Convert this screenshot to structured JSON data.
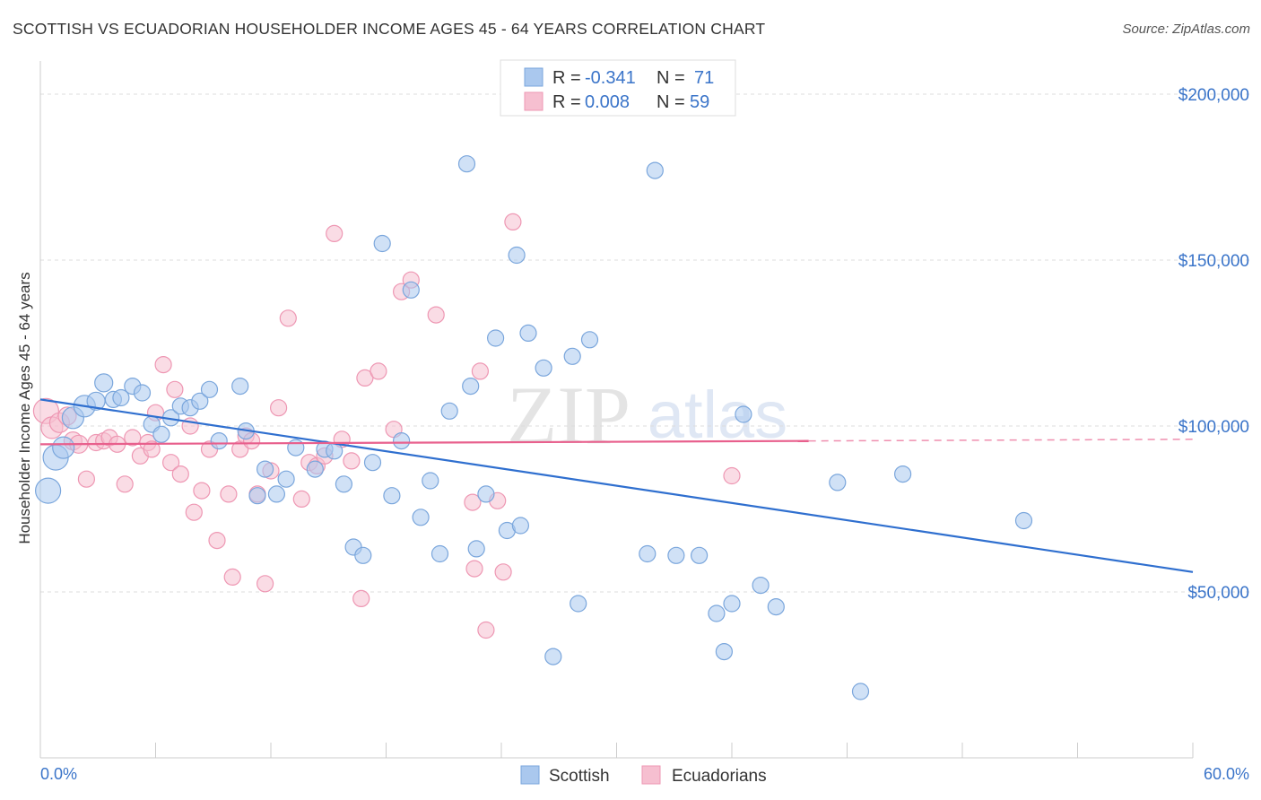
{
  "header": {
    "title": "SCOTTISH VS ECUADORIAN HOUSEHOLDER INCOME AGES 45 - 64 YEARS CORRELATION CHART",
    "source": "Source: ZipAtlas.com"
  },
  "watermark": {
    "zip": "ZIP",
    "atlas": "atlas"
  },
  "legend_top": [
    {
      "r_label": "R =",
      "r_value": "-0.341",
      "n_label": "N =",
      "n_value": "71"
    },
    {
      "r_label": "R =",
      "r_value": "0.008",
      "n_label": "N =",
      "n_value": "59"
    }
  ],
  "legend_bottom": [
    "Scottish",
    "Ecuadorians"
  ],
  "colors": {
    "scottish_fill": "#aac8ee",
    "scottish_stroke": "#7aa6dc",
    "scottish_line": "#2f6fcf",
    "ecuadorian_fill": "#f6bfd0",
    "ecuadorian_stroke": "#ee97b3",
    "ecuadorian_line": "#e8608d",
    "tick_text": "#3a74c9"
  },
  "chart_data": {
    "type": "scatter",
    "title": "SCOTTISH VS ECUADORIAN HOUSEHOLDER INCOME AGES 45 - 64 YEARS CORRELATION CHART",
    "xlabel": "",
    "ylabel": "Householder Income Ages 45 - 64 years",
    "xlim": [
      0,
      60
    ],
    "ylim": [
      0,
      210000
    ],
    "x_tick_labels": [
      "0.0%",
      "60.0%"
    ],
    "y_ticks": [
      50000,
      100000,
      150000,
      200000
    ],
    "y_tick_labels": [
      "$50,000",
      "$100,000",
      "$150,000",
      "$200,000"
    ],
    "grid": true,
    "legend_position": "top-center",
    "series": [
      {
        "name": "Scottish",
        "r": -0.341,
        "n": 71,
        "trend": {
          "x": [
            0,
            60
          ],
          "y": [
            108000,
            56000
          ]
        },
        "points": [
          [
            0.4,
            80500,
            14
          ],
          [
            0.8,
            90500,
            14
          ],
          [
            1.2,
            93500,
            12
          ],
          [
            1.7,
            102500,
            12
          ],
          [
            2.3,
            106000,
            12
          ],
          [
            2.9,
            107500,
            10
          ],
          [
            3.3,
            113000,
            10
          ],
          [
            3.8,
            108000,
            9
          ],
          [
            4.2,
            108500,
            9
          ],
          [
            4.8,
            112000,
            9
          ],
          [
            5.3,
            110000,
            9
          ],
          [
            5.8,
            100500,
            9
          ],
          [
            6.3,
            97500,
            9
          ],
          [
            6.8,
            102500,
            9
          ],
          [
            7.3,
            106000,
            9
          ],
          [
            7.8,
            105500,
            9
          ],
          [
            8.3,
            107500,
            9
          ],
          [
            8.8,
            111000,
            9
          ],
          [
            9.3,
            95500,
            9
          ],
          [
            10.4,
            112000,
            9
          ],
          [
            10.7,
            98500,
            9
          ],
          [
            11.3,
            79000,
            9
          ],
          [
            11.7,
            87000,
            9
          ],
          [
            12.3,
            79500,
            9
          ],
          [
            12.8,
            84000,
            9
          ],
          [
            13.3,
            93500,
            9
          ],
          [
            14.3,
            87000,
            9
          ],
          [
            14.8,
            93000,
            9
          ],
          [
            15.3,
            92500,
            9
          ],
          [
            15.8,
            82500,
            9
          ],
          [
            16.3,
            63500,
            9
          ],
          [
            16.8,
            61000,
            9
          ],
          [
            17.3,
            89000,
            9
          ],
          [
            17.8,
            155000,
            9
          ],
          [
            18.3,
            79000,
            9
          ],
          [
            18.8,
            95500,
            9
          ],
          [
            19.3,
            141000,
            9
          ],
          [
            19.8,
            72500,
            9
          ],
          [
            20.3,
            83500,
            9
          ],
          [
            20.8,
            61500,
            9
          ],
          [
            21.3,
            104500,
            9
          ],
          [
            22.2,
            179000,
            9
          ],
          [
            22.4,
            112000,
            9
          ],
          [
            22.7,
            63000,
            9
          ],
          [
            23.2,
            79500,
            9
          ],
          [
            23.7,
            126500,
            9
          ],
          [
            24.3,
            68500,
            9
          ],
          [
            24.8,
            151500,
            9
          ],
          [
            25.0,
            70000,
            9
          ],
          [
            25.4,
            128000,
            9
          ],
          [
            26.2,
            117500,
            9
          ],
          [
            26.7,
            30500,
            9
          ],
          [
            27.7,
            121000,
            9
          ],
          [
            28.0,
            46500,
            9
          ],
          [
            28.6,
            126000,
            9
          ],
          [
            31.6,
            61500,
            9
          ],
          [
            32.0,
            177000,
            9
          ],
          [
            33.1,
            61000,
            9
          ],
          [
            34.3,
            61000,
            9
          ],
          [
            35.2,
            43500,
            9
          ],
          [
            35.6,
            32000,
            9
          ],
          [
            36.0,
            46500,
            9
          ],
          [
            36.6,
            103500,
            9
          ],
          [
            37.5,
            52000,
            9
          ],
          [
            38.3,
            45500,
            9
          ],
          [
            41.5,
            83000,
            9
          ],
          [
            42.7,
            20000,
            9
          ],
          [
            44.9,
            85500,
            9
          ],
          [
            51.2,
            71500,
            9
          ]
        ]
      },
      {
        "name": "Ecuadorians",
        "r": 0.008,
        "n": 59,
        "trend": {
          "x": [
            0,
            40
          ],
          "y": [
            94500,
            95500
          ]
        },
        "trend_dashed": {
          "x": [
            40,
            60
          ],
          "y": [
            95500,
            96000
          ]
        },
        "points": [
          [
            0.3,
            104500,
            14
          ],
          [
            0.6,
            99500,
            12
          ],
          [
            1.0,
            101000,
            11
          ],
          [
            1.4,
            103000,
            10
          ],
          [
            1.7,
            95500,
            10
          ],
          [
            2.0,
            94500,
            10
          ],
          [
            2.4,
            84000,
            9
          ],
          [
            2.9,
            95000,
            9
          ],
          [
            3.3,
            95500,
            9
          ],
          [
            3.6,
            96500,
            9
          ],
          [
            4.0,
            94500,
            9
          ],
          [
            4.4,
            82500,
            9
          ],
          [
            4.8,
            96500,
            9
          ],
          [
            5.2,
            91000,
            9
          ],
          [
            5.6,
            95000,
            9
          ],
          [
            5.8,
            93000,
            9
          ],
          [
            6.0,
            104000,
            9
          ],
          [
            6.4,
            118500,
            9
          ],
          [
            6.8,
            89000,
            9
          ],
          [
            7.0,
            111000,
            9
          ],
          [
            7.3,
            85500,
            9
          ],
          [
            7.8,
            100000,
            9
          ],
          [
            8.0,
            74000,
            9
          ],
          [
            8.4,
            80500,
            9
          ],
          [
            8.8,
            93000,
            9
          ],
          [
            9.2,
            65500,
            9
          ],
          [
            9.8,
            79500,
            9
          ],
          [
            10.0,
            54500,
            9
          ],
          [
            10.4,
            93000,
            9
          ],
          [
            10.7,
            97000,
            9
          ],
          [
            11.0,
            95500,
            9
          ],
          [
            11.3,
            79500,
            9
          ],
          [
            11.7,
            52500,
            9
          ],
          [
            12.0,
            86500,
            9
          ],
          [
            12.4,
            105500,
            9
          ],
          [
            12.9,
            132500,
            9
          ],
          [
            13.6,
            78000,
            9
          ],
          [
            14.0,
            89000,
            9
          ],
          [
            14.4,
            88000,
            9
          ],
          [
            14.8,
            91000,
            9
          ],
          [
            15.3,
            158000,
            9
          ],
          [
            15.7,
            96000,
            9
          ],
          [
            16.2,
            89500,
            9
          ],
          [
            16.7,
            48000,
            9
          ],
          [
            16.9,
            114500,
            9
          ],
          [
            17.6,
            116500,
            9
          ],
          [
            18.4,
            99000,
            9
          ],
          [
            18.8,
            140500,
            9
          ],
          [
            19.3,
            144000,
            9
          ],
          [
            20.6,
            133500,
            9
          ],
          [
            22.5,
            77000,
            9
          ],
          [
            22.6,
            57000,
            9
          ],
          [
            22.9,
            116500,
            9
          ],
          [
            23.2,
            38500,
            9
          ],
          [
            23.8,
            77500,
            9
          ],
          [
            24.1,
            56000,
            9
          ],
          [
            24.6,
            161500,
            9
          ],
          [
            36.0,
            85000,
            9
          ]
        ]
      }
    ]
  }
}
